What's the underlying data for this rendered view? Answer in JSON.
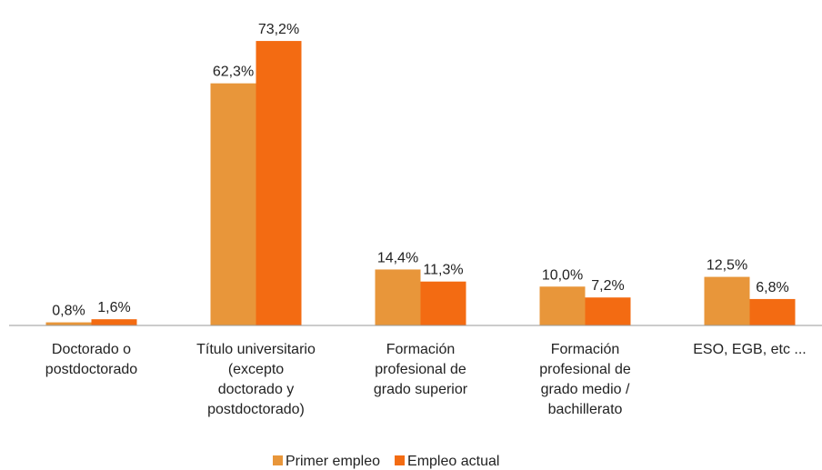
{
  "chart_data": {
    "type": "bar",
    "categories": [
      "Doctorado o\npostdoctorado",
      "Título universitario\n(excepto\ndoctorado y\npostdoctorado)",
      "Formación\nprofesional de\ngrado superior",
      "Formación\nprofesional de\ngrado medio /\nbachillerato",
      "ESO, EGB, etc ..."
    ],
    "series": [
      {
        "name": "Primer empleo",
        "color": "#e8963a",
        "values": [
          0.8,
          62.3,
          14.4,
          10.0,
          12.5
        ],
        "value_labels": [
          "0,8%",
          "62,3%",
          "14,4%",
          "10,0%",
          "12,5%"
        ]
      },
      {
        "name": "Empleo actual",
        "color": "#f36b12",
        "values": [
          1.6,
          73.2,
          11.3,
          7.2,
          6.8
        ],
        "value_labels": [
          "1,6%",
          "73,2%",
          "11,3%",
          "7,2%",
          "6,8%"
        ]
      }
    ],
    "ylim": [
      0,
      80
    ],
    "legend": "bottom"
  }
}
